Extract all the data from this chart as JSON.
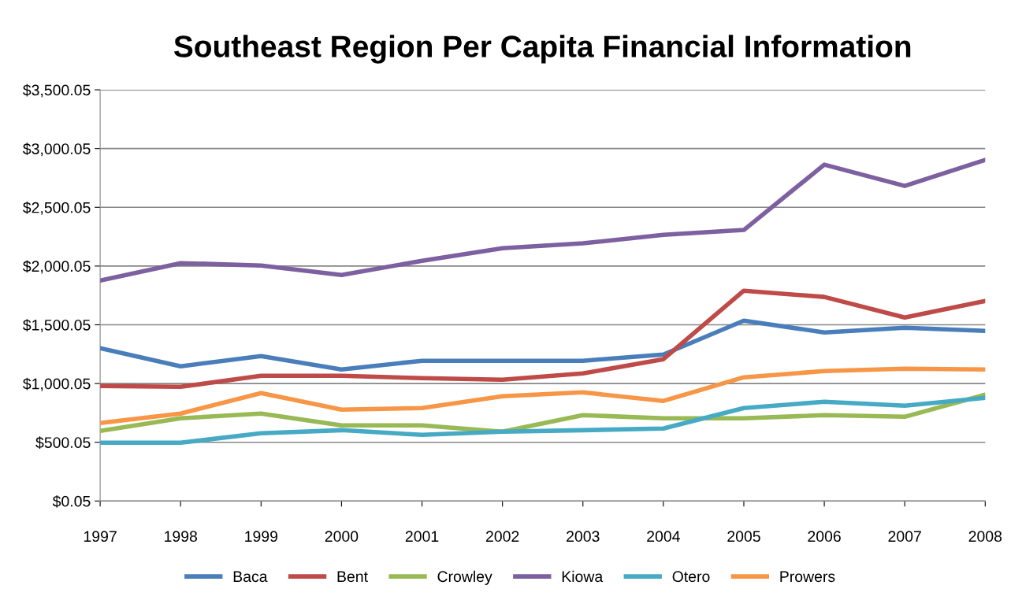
{
  "chart_data": {
    "type": "line",
    "title": "Southeast Region Per Capita Financial Information",
    "categories": [
      "1997",
      "1998",
      "1999",
      "2000",
      "2001",
      "2002",
      "2003",
      "2004",
      "2005",
      "2006",
      "2007",
      "2008"
    ],
    "series": [
      {
        "name": "Baca",
        "color": "#4a7ebb",
        "values": [
          1301,
          1147,
          1234,
          1120,
          1194,
          1194,
          1194,
          1247,
          1535,
          1435,
          1475,
          1448
        ]
      },
      {
        "name": "Bent",
        "color": "#be4b48",
        "values": [
          979,
          972,
          1066,
          1066,
          1046,
          1033,
          1086,
          1207,
          1790,
          1737,
          1562,
          1703
        ]
      },
      {
        "name": "Crowley",
        "color": "#98b954",
        "values": [
          597,
          704,
          744,
          644,
          644,
          590,
          731,
          704,
          704,
          731,
          717,
          905
        ]
      },
      {
        "name": "Kiowa",
        "color": "#7d60a0",
        "values": [
          1877,
          2025,
          2005,
          1924,
          2045,
          2152,
          2193,
          2266,
          2307,
          2863,
          2682,
          2903
        ]
      },
      {
        "name": "Otero",
        "color": "#46aac5",
        "values": [
          496,
          496,
          577,
          603,
          563,
          590,
          603,
          617,
          791,
          845,
          811,
          878
        ]
      },
      {
        "name": "Prowers",
        "color": "#f79646",
        "values": [
          664,
          744,
          919,
          778,
          791,
          892,
          925,
          852,
          1053,
          1106,
          1126,
          1120
        ]
      }
    ],
    "ylim": [
      0.05,
      3500.05
    ],
    "yticks": [
      {
        "value": 0.05,
        "label": "$0.05"
      },
      {
        "value": 500.05,
        "label": "$500.05"
      },
      {
        "value": 1000.05,
        "label": "$1,000.05"
      },
      {
        "value": 1500.05,
        "label": "$1,500.05"
      },
      {
        "value": 2000.05,
        "label": "$2,000.05"
      },
      {
        "value": 2500.05,
        "label": "$2,500.05"
      },
      {
        "value": 3000.05,
        "label": "$3,000.05"
      },
      {
        "value": 3500.05,
        "label": "$3,500.05"
      }
    ],
    "grid": "y",
    "legend": "bottom",
    "marker": "none",
    "line_style": "solid"
  }
}
